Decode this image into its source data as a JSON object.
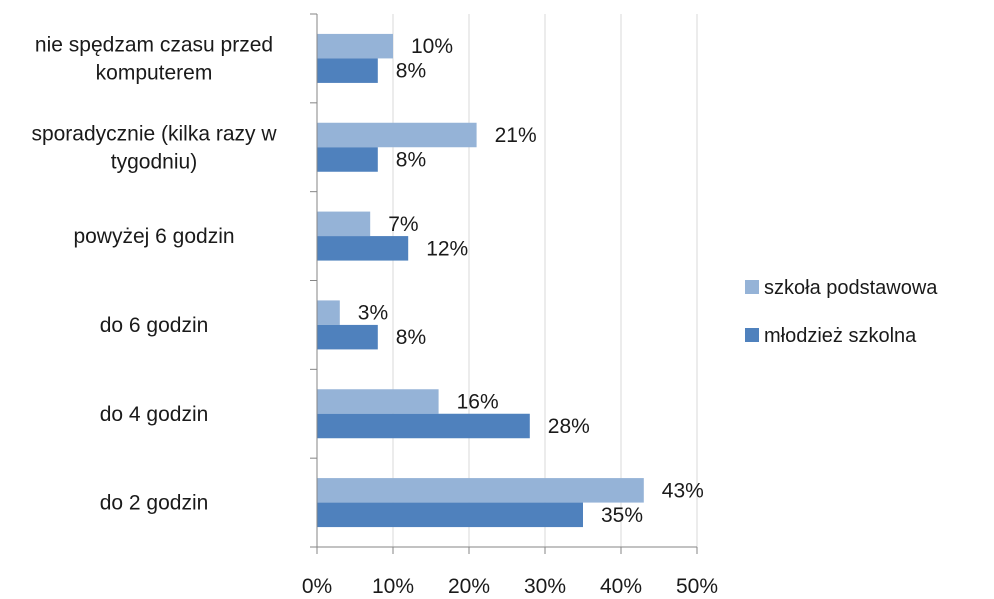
{
  "chart_data": {
    "type": "bar",
    "orientation": "horizontal",
    "title": "",
    "xlabel": "",
    "ylabel": "",
    "categories": [
      [
        "nie spędzam czasu przed",
        "komputerem"
      ],
      [
        "sporadycznie (kilka razy w",
        "tygodniu)"
      ],
      [
        "powyżej 6 godzin"
      ],
      [
        "do 6 godzin"
      ],
      [
        "do 4 godzin"
      ],
      [
        "do 2 godzin"
      ]
    ],
    "series": [
      {
        "name": "szkoła podstawowa",
        "color": "#95b3d7",
        "values": [
          10,
          21,
          7,
          3,
          16,
          43
        ],
        "labels": [
          "10%",
          "21%",
          "7%",
          "3%",
          "16%",
          "43%"
        ]
      },
      {
        "name": "młodzież szkolna",
        "color": "#4f81bd",
        "values": [
          8,
          8,
          12,
          8,
          28,
          35
        ],
        "labels": [
          "8%",
          "8%",
          "12%",
          "8%",
          "28%",
          "35%"
        ]
      }
    ],
    "xlim": [
      0,
      50
    ],
    "xticks": [
      0,
      10,
      20,
      30,
      40,
      50
    ],
    "xtick_labels": [
      "0%",
      "10%",
      "20%",
      "30%",
      "40%",
      "50%"
    ],
    "grid": "vertical",
    "legend_position": "right"
  }
}
